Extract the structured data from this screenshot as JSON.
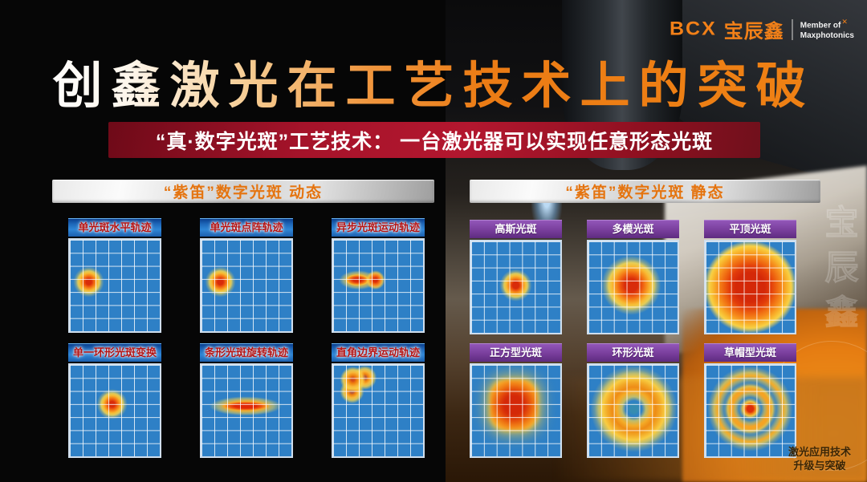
{
  "logo": {
    "bcx": "BCX",
    "brand_cn": "宝辰鑫",
    "member_line1": "Member of",
    "x_mark": "✕",
    "member_line2": "Maxphotonics"
  },
  "title": "创鑫激光在工艺技术上的突破",
  "banner": {
    "text": "“真·数字光斑”工艺技术： 一台激光器可以实现任意形态光斑"
  },
  "sections": {
    "dynamic": {
      "header": "“紫笛”数字光斑 动态",
      "panels": [
        {
          "label": "单光斑水平轨迹",
          "spot": "single-dot-left"
        },
        {
          "label": "单光斑点阵轨迹",
          "spot": "single-dot-left"
        },
        {
          "label": "异步光斑运动轨迹",
          "spot": "elongated-blob-plus-dot"
        },
        {
          "label": "单一环形光斑变换",
          "spot": "single-dot-center"
        },
        {
          "label": "条形光斑旋转轨迹",
          "spot": "horizontal-bar"
        },
        {
          "label": "直角边界运动轨迹",
          "spot": "right-angle-corner"
        }
      ]
    },
    "static": {
      "header": "“紫笛”数字光斑 静态",
      "panels": [
        {
          "label": "高斯光斑",
          "spot": "gaussian-dot"
        },
        {
          "label": "多模光斑",
          "spot": "multimode-blob"
        },
        {
          "label": "平顶光斑",
          "spot": "flat-top-disc"
        },
        {
          "label": "正方型光斑",
          "spot": "rounded-square"
        },
        {
          "label": "环形光斑",
          "spot": "ring-donut"
        },
        {
          "label": "草帽型光斑",
          "spot": "concentric-rings"
        }
      ]
    }
  },
  "footer": {
    "line1": "激光应用技术",
    "line2": "升级与突破"
  },
  "watermark": "宝辰鑫",
  "colors": {
    "accent_orange": "#ee7c15",
    "banner_red": "#a5132a",
    "panel_blue": "#2e80c6",
    "label_purple": "#7a3f9d",
    "label_blue": "#1d66b8",
    "label_blue_text": "#b51313",
    "header_silver": "#d2d2d2",
    "spot_core_red": "#d82c0a",
    "spot_orange": "#f68c1c",
    "spot_yellow": "#f8d044"
  }
}
